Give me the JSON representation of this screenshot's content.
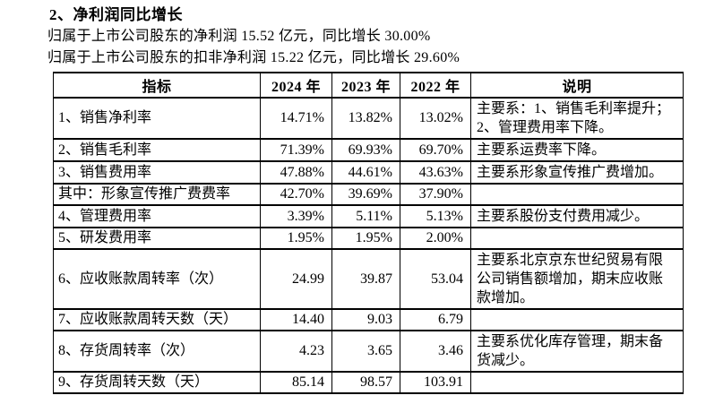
{
  "section": {
    "title": "2、净利润同比增长",
    "summary_lines": [
      "归属于上市公司股东的净利润 15.52 亿元，同比增长 30.00%",
      "归属于上市公司股东的扣非净利润 15.22 亿元，同比增长 29.60%"
    ]
  },
  "table": {
    "headers": [
      "指标",
      "2024 年",
      "2023 年",
      "2022 年",
      "说明"
    ],
    "rows": [
      {
        "indicator": "1、销售净利率",
        "y2024": "14.71%",
        "y2023": "13.82%",
        "y2022": "13.02%",
        "note": "主要系：1、销售毛利率提升；2、管理费用率下降。"
      },
      {
        "indicator": "2、销售毛利率",
        "y2024": "71.39%",
        "y2023": "69.93%",
        "y2022": "69.70%",
        "note": "主要系运费率下降。"
      },
      {
        "indicator": "3、销售费用率",
        "y2024": "47.88%",
        "y2023": "44.61%",
        "y2022": "43.63%",
        "note": "主要系形象宣传推广费增加。"
      },
      {
        "indicator": "其中：形象宣传推广费费率",
        "y2024": "42.70%",
        "y2023": "39.69%",
        "y2022": "37.90%",
        "note": ""
      },
      {
        "indicator": "4、管理费用率",
        "y2024": "3.39%",
        "y2023": "5.11%",
        "y2022": "5.13%",
        "note": "主要系股份支付费用减少。"
      },
      {
        "indicator": "5、研发费用率",
        "y2024": "1.95%",
        "y2023": "1.95%",
        "y2022": "2.00%",
        "note": ""
      },
      {
        "indicator": "6、应收账款周转率（次）",
        "y2024": "24.99",
        "y2023": "39.87",
        "y2022": "53.04",
        "note": "主要系北京京东世纪贸易有限公司销售额增加，期末应收账款增加。"
      },
      {
        "indicator": "7、应收账款周转天数（天）",
        "y2024": "14.40",
        "y2023": "9.03",
        "y2022": "6.79",
        "note": ""
      },
      {
        "indicator": "8、存货周转率（次）",
        "y2024": "4.23",
        "y2023": "3.65",
        "y2022": "3.46",
        "note": "主要系优化库存管理，期末备货减少。"
      },
      {
        "indicator": "9、存货周转天数（天）",
        "y2024": "85.14",
        "y2023": "98.57",
        "y2022": "103.91",
        "note": ""
      }
    ]
  },
  "colors": {
    "text": "#000000",
    "border": "#000000",
    "background": "#ffffff"
  }
}
